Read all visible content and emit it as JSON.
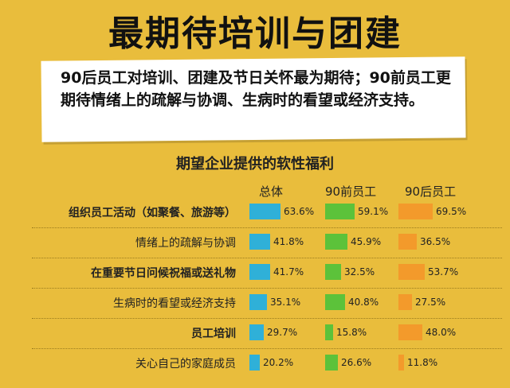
{
  "title": "最期待培训与团建",
  "summary": "90后员工对培训、团建及节日关怀最为期待；90前员工更期待情绪上的疏解与协调、生病时的看望或经济支持。",
  "chart_data": {
    "type": "bar",
    "title": "期望企业提供的软性福利",
    "categories": [
      "组织员工活动（如聚餐、旅游等）",
      "情绪上的疏解与协调",
      "在重要节日问候祝福或送礼物",
      "生病时的看望或经济支持",
      "员工培训",
      "关心自己的家庭成员"
    ],
    "bold_categories": [
      0,
      2,
      4
    ],
    "series": [
      {
        "name": "总体",
        "color": "#2fb0d8",
        "values": [
          63.6,
          41.8,
          41.7,
          35.1,
          29.7,
          20.2
        ]
      },
      {
        "name": "90前员工",
        "color": "#5cc23a",
        "values": [
          59.1,
          45.9,
          32.5,
          40.8,
          15.8,
          26.6
        ]
      },
      {
        "name": "90后员工",
        "color": "#f39a2b",
        "values": [
          69.5,
          36.5,
          53.7,
          27.5,
          48.0,
          11.8
        ]
      }
    ],
    "value_suffix": "%"
  }
}
